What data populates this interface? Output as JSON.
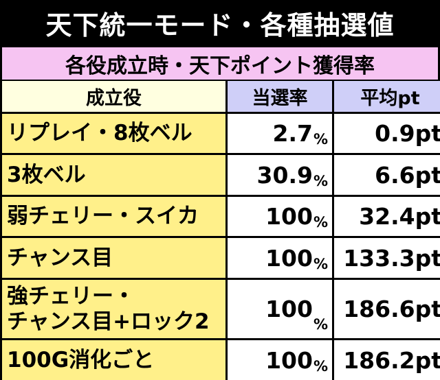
{
  "title": "天下統一モード・各種抽選値",
  "subtitle": "各役成立時・天下ポイント獲得率",
  "table": {
    "headers": [
      "成立役",
      "当選率",
      "平均pt"
    ],
    "rows": [
      {
        "name": "リプレイ・8枚ベル",
        "rate": "2.7",
        "rate_unit": "%",
        "avg": "0.9pt"
      },
      {
        "name": "3枚ベル",
        "rate": "30.9",
        "rate_unit": "%",
        "avg": "6.6pt"
      },
      {
        "name": "弱チェリー・スイカ",
        "rate": "100",
        "rate_unit": "%",
        "avg": "32.4pt"
      },
      {
        "name": "チャンス目",
        "rate": "100",
        "rate_unit": "%",
        "avg": "133.3pt"
      },
      {
        "name": "強チェリー・\nチャンス目+ロック2",
        "rate": "100",
        "rate_unit": "%",
        "avg": "186.6pt"
      },
      {
        "name": "100G消化ごと",
        "rate": "100",
        "rate_unit": "%",
        "avg": "186.2pt"
      }
    ]
  }
}
